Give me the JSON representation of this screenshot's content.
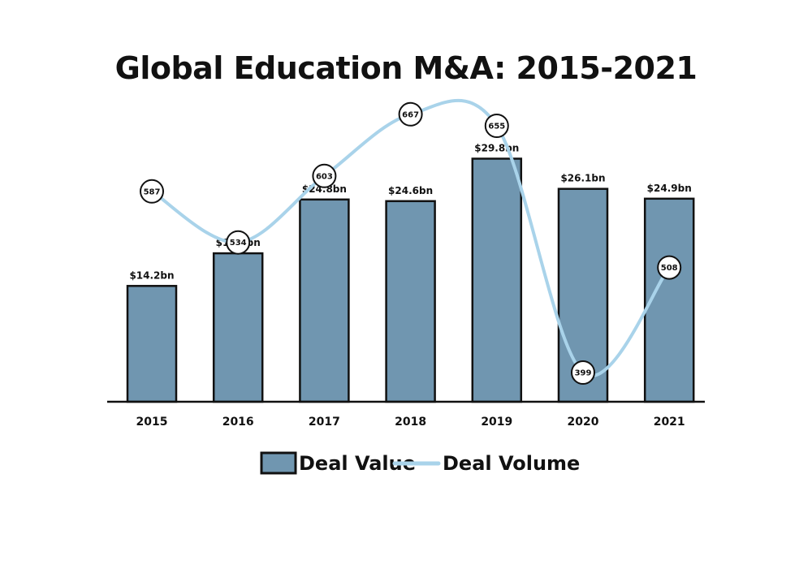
{
  "chart_data": {
    "type": "bar",
    "title": "Global Education M&A: 2015-2021",
    "categories": [
      "2015",
      "2016",
      "2017",
      "2018",
      "2019",
      "2020",
      "2021"
    ],
    "series": [
      {
        "name": "Deal Value",
        "type": "bar",
        "values": [
          14.2,
          18.2,
          24.8,
          24.6,
          29.8,
          26.1,
          24.9
        ],
        "labels": [
          "$14.2bn",
          "$18.2bn",
          "$24.8bn",
          "$24.6bn",
          "$29.8bn",
          "$26.1bn",
          "$24.9bn"
        ],
        "color": "#7096b0"
      },
      {
        "name": "Deal Volume",
        "type": "line",
        "values": [
          587,
          534,
          603,
          667,
          655,
          399,
          508
        ],
        "color": "#a9d3ea"
      }
    ],
    "legend_position": "bottom",
    "grid": false
  }
}
